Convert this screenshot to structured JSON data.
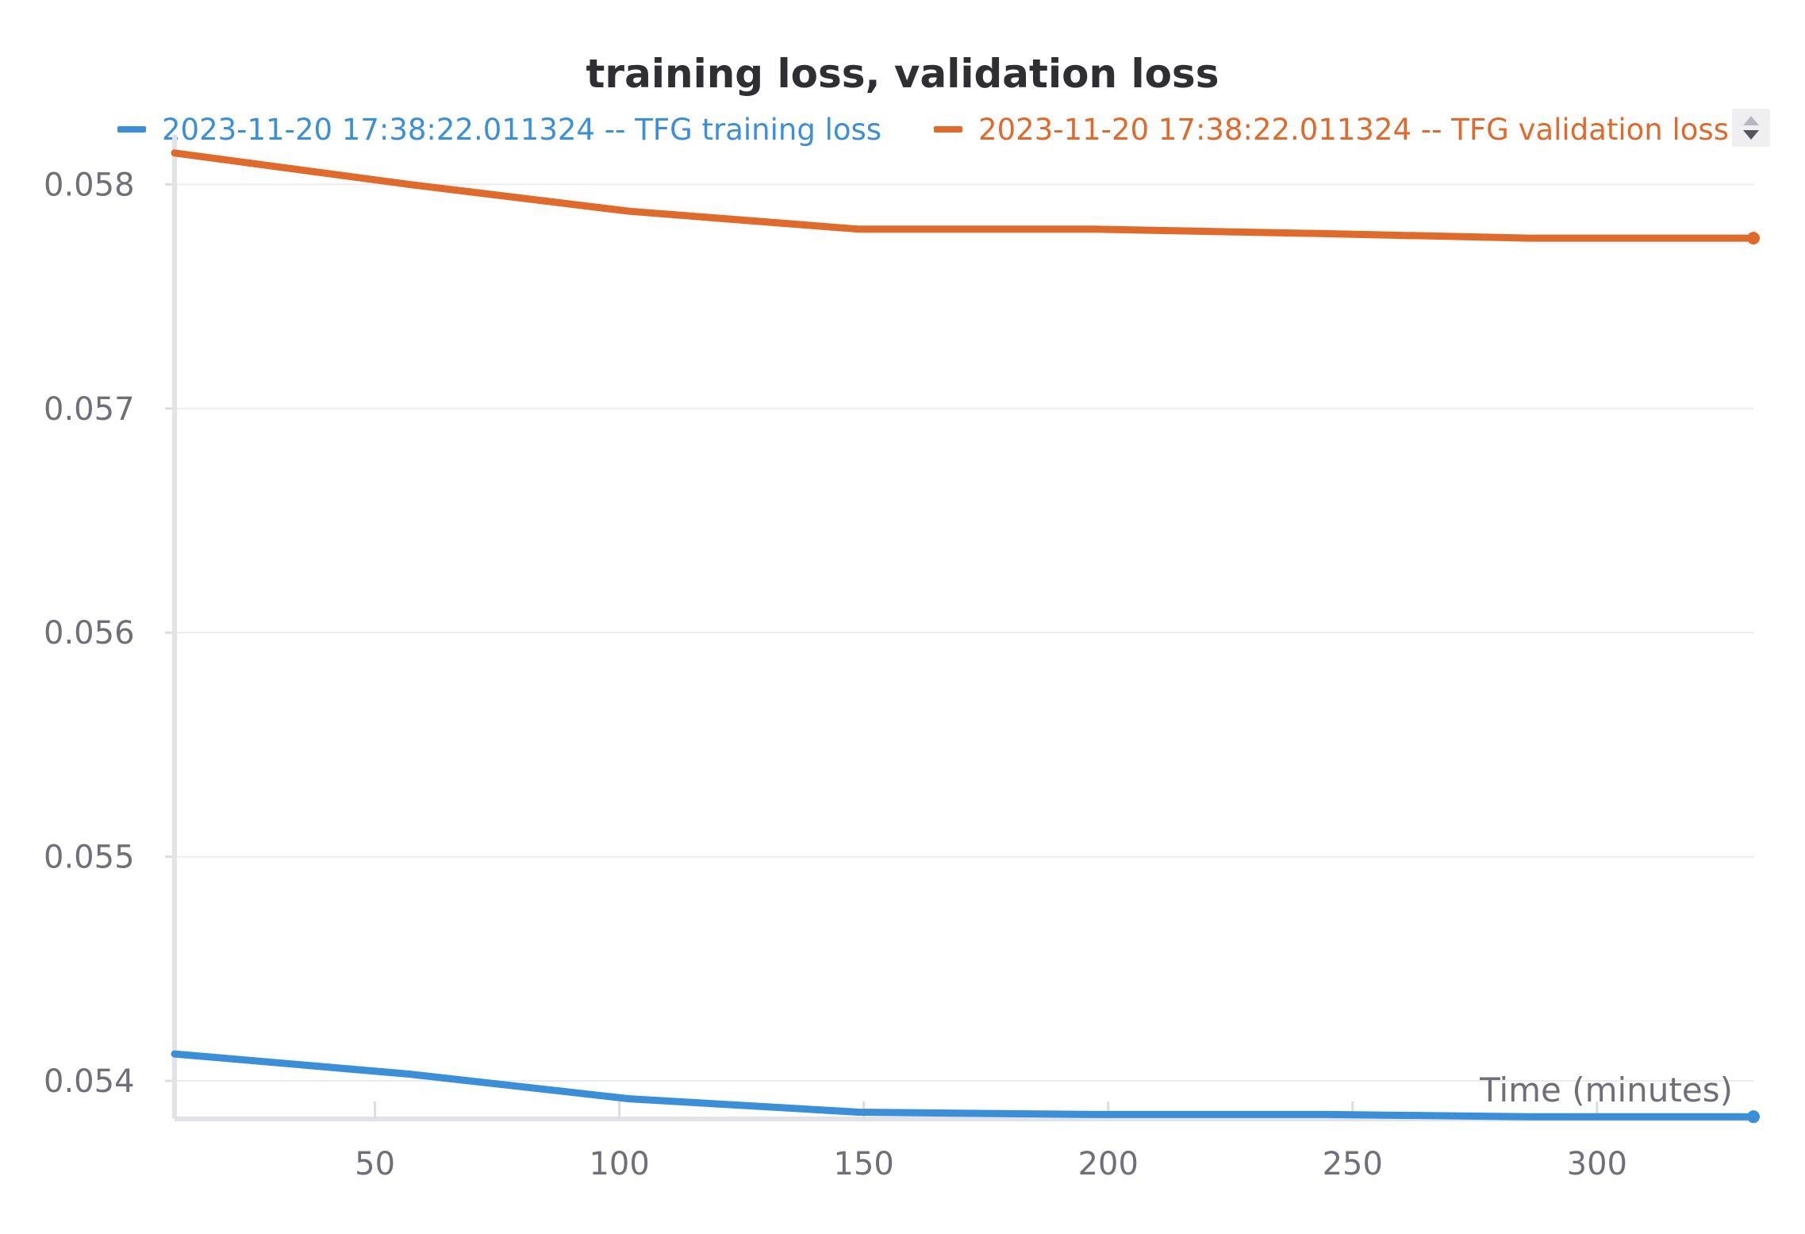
{
  "chart_data": {
    "type": "line",
    "title": "training loss, validation loss",
    "xlabel": "Time (minutes)",
    "ylabel": "",
    "xlim": [
      9,
      332
    ],
    "ylim": [
      0.05383,
      0.05815
    ],
    "x_ticks": [
      50,
      100,
      150,
      200,
      250,
      300
    ],
    "x_tick_labels": [
      "50",
      "100",
      "150",
      "200",
      "250",
      "300"
    ],
    "y_ticks": [
      0.054,
      0.055,
      0.056,
      0.057,
      0.058
    ],
    "y_tick_labels": [
      "0.054",
      "0.055",
      "0.056",
      "0.057",
      "0.058"
    ],
    "grid": true,
    "legend_position": "top",
    "series": [
      {
        "name": "2023-11-20 17:38:22.011324 -- TFG training loss",
        "color": "#3b8fd8",
        "x": [
          9,
          57,
          102,
          149,
          197,
          245,
          286,
          332
        ],
        "y": [
          0.05412,
          0.05403,
          0.05392,
          0.05386,
          0.05385,
          0.05385,
          0.05384,
          0.05384
        ]
      },
      {
        "name": "2023-11-20 17:38:22.011324 -- TFG validation loss",
        "color": "#e06a2c",
        "x": [
          9,
          57,
          102,
          149,
          197,
          245,
          286,
          332
        ],
        "y": [
          0.05814,
          0.058,
          0.05788,
          0.0578,
          0.0578,
          0.05778,
          0.05776,
          0.05776
        ]
      }
    ]
  }
}
